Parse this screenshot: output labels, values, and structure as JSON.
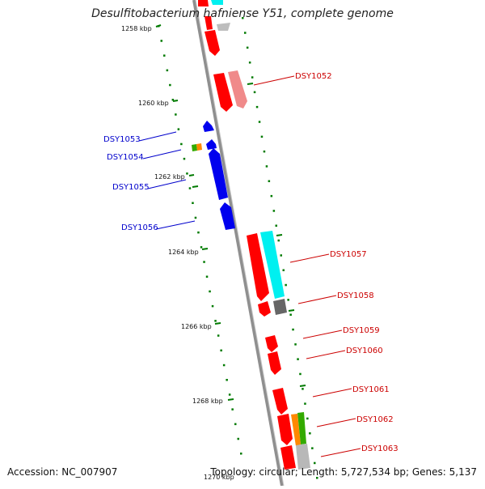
{
  "title": "Desulfitobacterium hafniense Y51, complete genome",
  "footer": {
    "accession": "Accession: NC_007907",
    "summary": "Topology: circular; Length: 5,727,534 bp; Genes: 5,137"
  },
  "tick_labels": [
    "1258 kbp",
    "1260 kbp",
    "1262 kbp",
    "1264 kbp",
    "1266 kbp",
    "1268 kbp",
    "1270 kbp"
  ],
  "genes": [
    {
      "label": "DSY1052",
      "strand": "reverse",
      "color": "#cc0000"
    },
    {
      "label": "DSY1053",
      "strand": "forward",
      "color": "#0000cc"
    },
    {
      "label": "DSY1054",
      "strand": "forward",
      "color": "#0000cc"
    },
    {
      "label": "DSY1055",
      "strand": "forward",
      "color": "#0000cc"
    },
    {
      "label": "DSY1056",
      "strand": "forward",
      "color": "#0000cc"
    },
    {
      "label": "DSY1057",
      "strand": "reverse",
      "color": "#cc0000"
    },
    {
      "label": "DSY1058",
      "strand": "reverse",
      "color": "#cc0000"
    },
    {
      "label": "DSY1059",
      "strand": "reverse",
      "color": "#cc0000"
    },
    {
      "label": "DSY1060",
      "strand": "reverse",
      "color": "#cc0000"
    },
    {
      "label": "DSY1061",
      "strand": "reverse",
      "color": "#cc0000"
    },
    {
      "label": "DSY1062",
      "strand": "reverse",
      "color": "#cc0000"
    },
    {
      "label": "DSY1063",
      "strand": "reverse",
      "color": "#cc0000"
    }
  ],
  "colors": {
    "reverse_gene": "#ff0000",
    "forward_gene": "#0000ee",
    "backbone": "#8a8a8a",
    "ticks": "#007a00",
    "cyan_feature": "#00f0f0",
    "pink_feature": "#f08a8a"
  }
}
